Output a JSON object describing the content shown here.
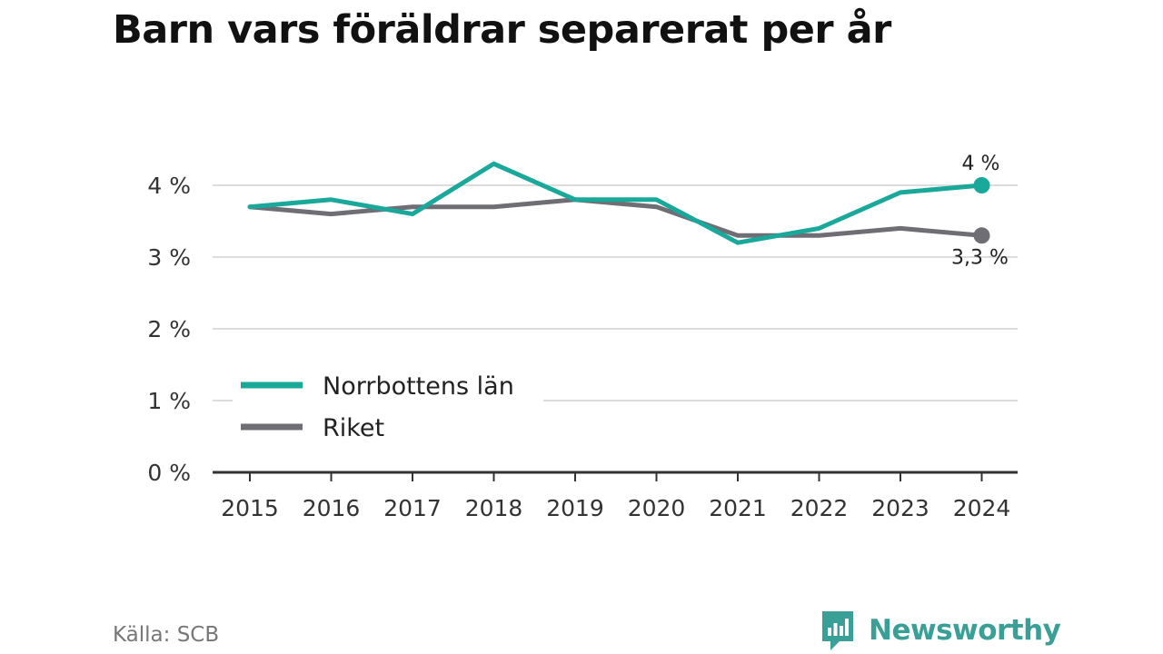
{
  "title": "Barn vars föräldrar separerat per år",
  "source": "Källa: SCB",
  "brand": {
    "name": "Newsworthy",
    "icon": "newsworthy-logo-icon"
  },
  "colors": {
    "norrbotten": "#1aa89a",
    "riket": "#6e6e74",
    "grid": "#dddddd",
    "axis": "#333333"
  },
  "chart_data": {
    "type": "line",
    "x": [
      "2015",
      "2016",
      "2017",
      "2018",
      "2019",
      "2020",
      "2021",
      "2022",
      "2023",
      "2024"
    ],
    "y_ticks": [
      {
        "value": 0,
        "label": "0 %"
      },
      {
        "value": 1,
        "label": "1 %"
      },
      {
        "value": 2,
        "label": "2 %"
      },
      {
        "value": 3,
        "label": "3 %"
      },
      {
        "value": 4,
        "label": "4 %"
      }
    ],
    "ylim": [
      0,
      4
    ],
    "grid": true,
    "legend_position": "bottom-left",
    "series": [
      {
        "name": "Norrbottens län",
        "values": [
          3.7,
          3.8,
          3.6,
          4.3,
          3.8,
          3.8,
          3.2,
          3.4,
          3.9,
          4.0
        ],
        "end_label": "4 %",
        "end_label_position": "above"
      },
      {
        "name": "Riket",
        "values": [
          3.7,
          3.6,
          3.7,
          3.7,
          3.8,
          3.7,
          3.3,
          3.3,
          3.4,
          3.3
        ],
        "end_label": "3,3 %",
        "end_label_position": "below"
      }
    ]
  }
}
